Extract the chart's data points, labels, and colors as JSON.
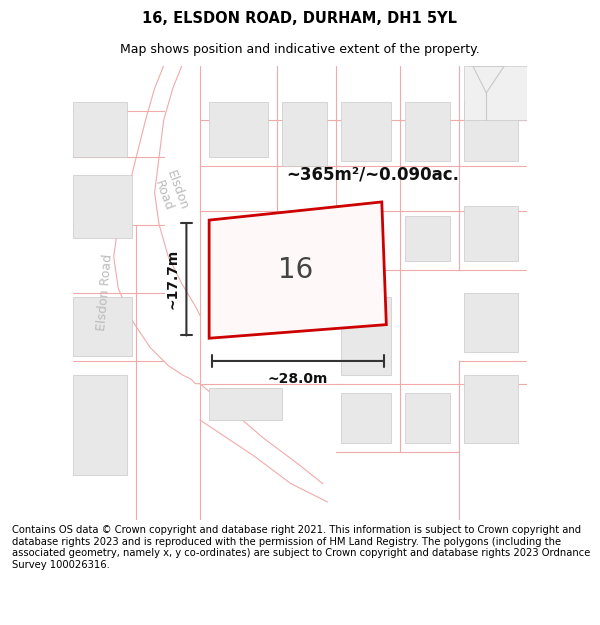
{
  "title": "16, ELSDON ROAD, DURHAM, DH1 5YL",
  "subtitle": "Map shows position and indicative extent of the property.",
  "footer": "Contains OS data © Crown copyright and database right 2021. This information is subject to Crown copyright and database rights 2023 and is reproduced with the permission of HM Land Registry. The polygons (including the associated geometry, namely x, y co-ordinates) are subject to Crown copyright and database rights 2023 Ordnance Survey 100026316.",
  "area_label": "~365m²/~0.090ac.",
  "width_label": "~28.0m",
  "height_label": "~17.7m",
  "number_label": "16",
  "road_label": "Elsdon Road",
  "background_color": "#ffffff",
  "building_fill": "#e8e8e8",
  "building_edge": "#c8c8c8",
  "pink_line_color": "#f0aaaa",
  "red_rect_color": "#cc0000",
  "map_bg": "#ffffff",
  "title_fontsize": 10.5,
  "subtitle_fontsize": 9,
  "footer_fontsize": 7.2,
  "annotation_fontsize": 10,
  "number_fontsize": 20,
  "area_fontsize": 12,
  "road_label_color": "#bbbbbb",
  "road_label_fontsize": 9
}
